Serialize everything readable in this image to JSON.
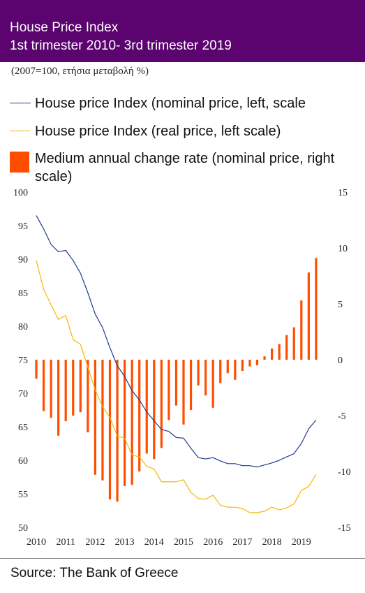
{
  "header": {
    "title_line1": "House Price Index",
    "title_line2": "1st trimester 2010- 3rd trimester 2019"
  },
  "subtitle": "(2007=100, ετήσια μεταβολή %)",
  "colors": {
    "header_bg": "#5b0470",
    "nominal": "#1f3c8c",
    "real": "#f5b800",
    "change": "#ff4d00"
  },
  "legend": [
    {
      "label": "House price Index (nominal price, left, scale"
    },
    {
      "label": "House price Index (real price, left scale)"
    },
    {
      "label": "Medium annual change rate (nominal price, right scale)"
    }
  ],
  "source": "Source: The Bank of Greece",
  "chart_data": {
    "type": "bar+line",
    "x_labels": [
      "2010",
      "2011",
      "2012",
      "2013",
      "2014",
      "2015",
      "2016",
      "2017",
      "2018",
      "2019"
    ],
    "left_axis": {
      "range": [
        50,
        100
      ],
      "ticks": [
        100,
        95,
        90,
        85,
        80,
        75,
        70,
        65,
        60,
        55,
        50
      ]
    },
    "right_axis": {
      "range": [
        -15,
        15
      ],
      "ticks": [
        15,
        10,
        5,
        0,
        -5,
        -10,
        -15
      ]
    },
    "series": [
      {
        "name": "House price Index (nominal price, left, scale",
        "axis": "left",
        "values": [
          96.5,
          94.5,
          92.2,
          91.1,
          91.3,
          89.8,
          87.9,
          85.0,
          81.8,
          79.8,
          76.8,
          74.1,
          72.5,
          70.4,
          69.0,
          67.2,
          65.9,
          64.6,
          64.3,
          63.4,
          63.3,
          61.8,
          60.4,
          60.2,
          60.4,
          59.9,
          59.5,
          59.5,
          59.2,
          59.2,
          59.0,
          59.3,
          59.6,
          60.0,
          60.5,
          61.0,
          62.5,
          64.7,
          66.0
        ]
      },
      {
        "name": "House price Index (real price, left scale)",
        "axis": "left",
        "values": [
          89.8,
          85.5,
          83.2,
          81.0,
          81.6,
          78.0,
          77.3,
          73.9,
          70.5,
          68.0,
          66.4,
          63.6,
          63.3,
          60.8,
          60.5,
          59.1,
          58.7,
          56.8,
          56.8,
          56.8,
          57.1,
          55.2,
          54.3,
          54.2,
          54.8,
          53.3,
          53.0,
          53.0,
          52.8,
          52.2,
          52.2,
          52.4,
          53.0,
          52.6,
          52.9,
          53.5,
          55.5,
          56.1,
          57.9
        ]
      },
      {
        "name": "Medium annual change rate (nominal price, right scale)",
        "axis": "right",
        "values": [
          -1.7,
          -4.6,
          -5.2,
          -6.8,
          -5.5,
          -5.0,
          -4.7,
          -6.5,
          -10.3,
          -10.8,
          -12.5,
          -12.7,
          -11.3,
          -11.2,
          -10.0,
          -8.4,
          -8.9,
          -7.9,
          -5.4,
          -4.1,
          -5.8,
          -4.5,
          -2.3,
          -3.2,
          -4.3,
          -2.1,
          -1.2,
          -1.8,
          -1.0,
          -0.6,
          -0.5,
          0.3,
          1.0,
          1.4,
          2.2,
          2.9,
          5.3,
          7.8,
          9.1
        ]
      }
    ]
  }
}
